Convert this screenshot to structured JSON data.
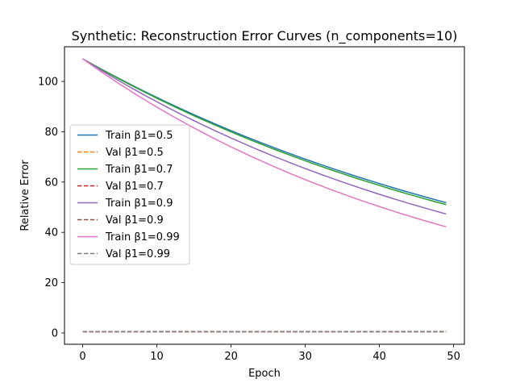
{
  "chart_data": {
    "type": "line",
    "title": "Synthetic: Reconstruction Error Curves (n_components=10)",
    "xlabel": "Epoch",
    "ylabel": "Relative Error",
    "xlim": [
      -2.45,
      51.45
    ],
    "ylim": [
      -4.5,
      113.8
    ],
    "xticks": [
      0,
      10,
      20,
      30,
      40,
      50
    ],
    "yticks": [
      0,
      20,
      40,
      60,
      80,
      100
    ],
    "grid": false,
    "legend_position": "center-left",
    "x_start": 0,
    "x_end": 49,
    "series": [
      {
        "name": "Train β1=0.5",
        "color": "#1f77b4",
        "dash": "solid",
        "start": 109.0,
        "end": 51.8
      },
      {
        "name": "Val β1=0.5",
        "color": "#ff7f0e",
        "dash": "dashed",
        "start": 0.5,
        "end": 0.5
      },
      {
        "name": "Train β1=0.7",
        "color": "#2ca02c",
        "dash": "solid",
        "start": 109.0,
        "end": 51.0
      },
      {
        "name": "Val β1=0.7",
        "color": "#d62728",
        "dash": "dashed",
        "start": 0.5,
        "end": 0.5
      },
      {
        "name": "Train β1=0.9",
        "color": "#9467bd",
        "dash": "solid",
        "start": 109.0,
        "end": 47.3
      },
      {
        "name": "Val β1=0.9",
        "color": "#8c564b",
        "dash": "dashed",
        "start": 0.5,
        "end": 0.5
      },
      {
        "name": "Train β1=0.99",
        "color": "#e377c2",
        "dash": "solid",
        "start": 109.0,
        "end": 42.2
      },
      {
        "name": "Val β1=0.99",
        "color": "#7f7f7f",
        "dash": "dashed",
        "start": 0.5,
        "end": 0.5
      }
    ]
  }
}
